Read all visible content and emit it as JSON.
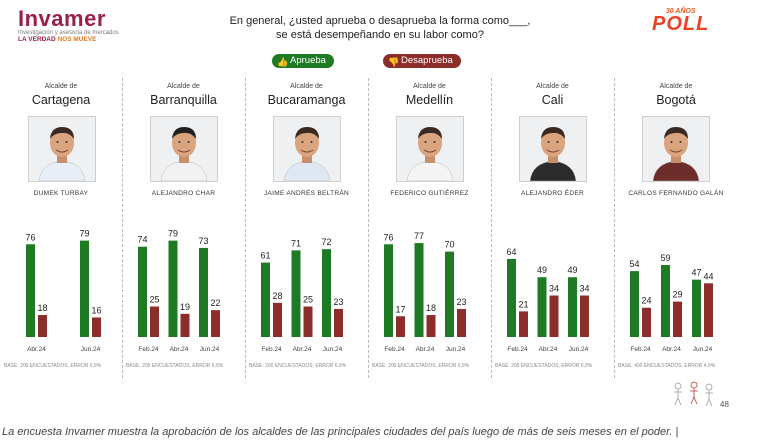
{
  "brand": {
    "name": "Invamer",
    "subtitle": "Investigación y asesoría de mercados",
    "tagline_a": "LA VERDAD",
    "tagline_b": "NOS MUEVE"
  },
  "question": {
    "line1": "En general, ¿usted aprueba o desaprueba la forma como___,",
    "line2": "se está desempeñando en su labor como?"
  },
  "poll_badge": {
    "years": "30 AÑOS",
    "word": "POLL"
  },
  "legend": {
    "approve": "Aprueba",
    "disapprove": "Desaprueba"
  },
  "colors": {
    "approve": "#1e7b24",
    "disapprove": "#8b2e2b"
  },
  "chart_data": [
    {
      "type": "bar",
      "role_label": "Alcalde de",
      "city": "Cartagena",
      "person": "DUMEK TURBAY",
      "categories": [
        "Abr.24",
        "Jun.24"
      ],
      "series": [
        {
          "name": "Aprueba",
          "values": [
            76,
            79
          ]
        },
        {
          "name": "Desaprueba",
          "values": [
            18,
            16
          ]
        }
      ],
      "base_note": "BASE: 200 ENCUESTADOS, ERROR 6,9%",
      "ylim": [
        0,
        100
      ]
    },
    {
      "type": "bar",
      "role_label": "Alcalde de",
      "city": "Barranquilla",
      "person": "ALEJANDRO CHAR",
      "categories": [
        "Feb.24",
        "Abr.24",
        "Jun.24"
      ],
      "series": [
        {
          "name": "Aprueba",
          "values": [
            74,
            79,
            73
          ]
        },
        {
          "name": "Desaprueba",
          "values": [
            25,
            19,
            22
          ]
        }
      ],
      "base_note": "BASE: 200 ENCUESTADOS, ERROR 6,9%",
      "ylim": [
        0,
        100
      ]
    },
    {
      "type": "bar",
      "role_label": "Alcalde de",
      "city": "Bucaramanga",
      "person": "JAIME ANDRÉS BELTRÁN",
      "categories": [
        "Feb.24",
        "Abr.24",
        "Jun.24"
      ],
      "series": [
        {
          "name": "Aprueba",
          "values": [
            61,
            71,
            72
          ]
        },
        {
          "name": "Desaprueba",
          "values": [
            28,
            25,
            23
          ]
        }
      ],
      "base_note": "BASE: 200 ENCUESTADOS, ERROR 6,9%",
      "ylim": [
        0,
        100
      ]
    },
    {
      "type": "bar",
      "role_label": "Alcalde de",
      "city": "Medellín",
      "person": "FEDERICO GUTIÉRREZ",
      "categories": [
        "Feb.24",
        "Abr.24",
        "Jun.24"
      ],
      "series": [
        {
          "name": "Aprueba",
          "values": [
            76,
            77,
            70
          ]
        },
        {
          "name": "Desaprueba",
          "values": [
            17,
            18,
            23
          ]
        }
      ],
      "base_note": "BASE: 200 ENCUESTADOS, ERROR 6,9%",
      "ylim": [
        0,
        100
      ]
    },
    {
      "type": "bar",
      "role_label": "Alcalde de",
      "city": "Cali",
      "person": "ALEJANDRO ÉDER",
      "categories": [
        "Feb.24",
        "Abr.24",
        "Jun.24"
      ],
      "series": [
        {
          "name": "Aprueba",
          "values": [
            64,
            49,
            49
          ]
        },
        {
          "name": "Desaprueba",
          "values": [
            21,
            34,
            34
          ]
        }
      ],
      "base_note": "BASE: 200 ENCUESTADOS, ERROR 6,9%",
      "ylim": [
        0,
        100
      ]
    },
    {
      "type": "bar",
      "role_label": "Alcalde de",
      "city": "Bogotá",
      "person": "CARLOS FERNANDO GALÁN",
      "categories": [
        "Feb.24",
        "Abr.24",
        "Jun.24"
      ],
      "series": [
        {
          "name": "Aprueba",
          "values": [
            54,
            59,
            47
          ]
        },
        {
          "name": "Desaprueba",
          "values": [
            24,
            29,
            44
          ]
        }
      ],
      "base_note": "BASE: 400 ENCUESTADOS, ERROR 4,9%",
      "ylim": [
        0,
        100
      ]
    }
  ],
  "page_number": "48",
  "caption": "La encuesta Invamer muestra la aprobación de los alcaldes de las principales ciudades del país luego de más de seis meses en el poder. |"
}
